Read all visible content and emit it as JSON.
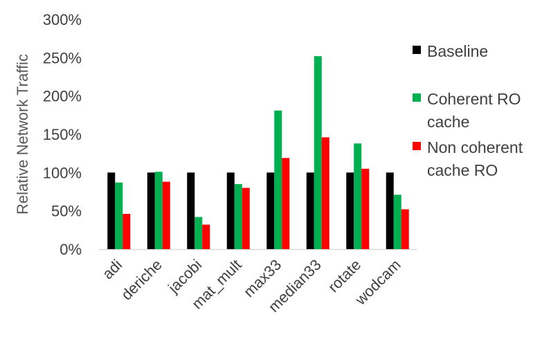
{
  "chart_data": {
    "type": "bar",
    "title": "",
    "xlabel": "",
    "ylabel": "Relative Network Traffic",
    "ylim": [
      0,
      300
    ],
    "yticks": [
      "0%",
      "50%",
      "100%",
      "150%",
      "200%",
      "250%",
      "300%"
    ],
    "categories": [
      "adi",
      "deriche",
      "jacobi",
      "mat_mult",
      "max33",
      "median33",
      "rotate",
      "wodcam"
    ],
    "series": [
      {
        "name": "Baseline",
        "color": "#000000",
        "values": [
          100,
          100,
          100,
          100,
          100,
          100,
          100,
          100
        ]
      },
      {
        "name": "Coherent RO cache",
        "color": "#00b050",
        "values": [
          87,
          101,
          42,
          85,
          181,
          252,
          138,
          71
        ]
      },
      {
        "name": "Non coherent cache RO",
        "color": "#ff0000",
        "values": [
          46,
          88,
          32,
          80,
          119,
          146,
          105,
          52
        ]
      }
    ],
    "legend": {
      "position": "right",
      "entries": [
        {
          "lines": [
            "Baseline"
          ]
        },
        {
          "lines": [
            "Coherent RO",
            "cache"
          ]
        },
        {
          "lines": [
            "Non coherent",
            "cache RO"
          ]
        }
      ]
    },
    "grid": false
  }
}
